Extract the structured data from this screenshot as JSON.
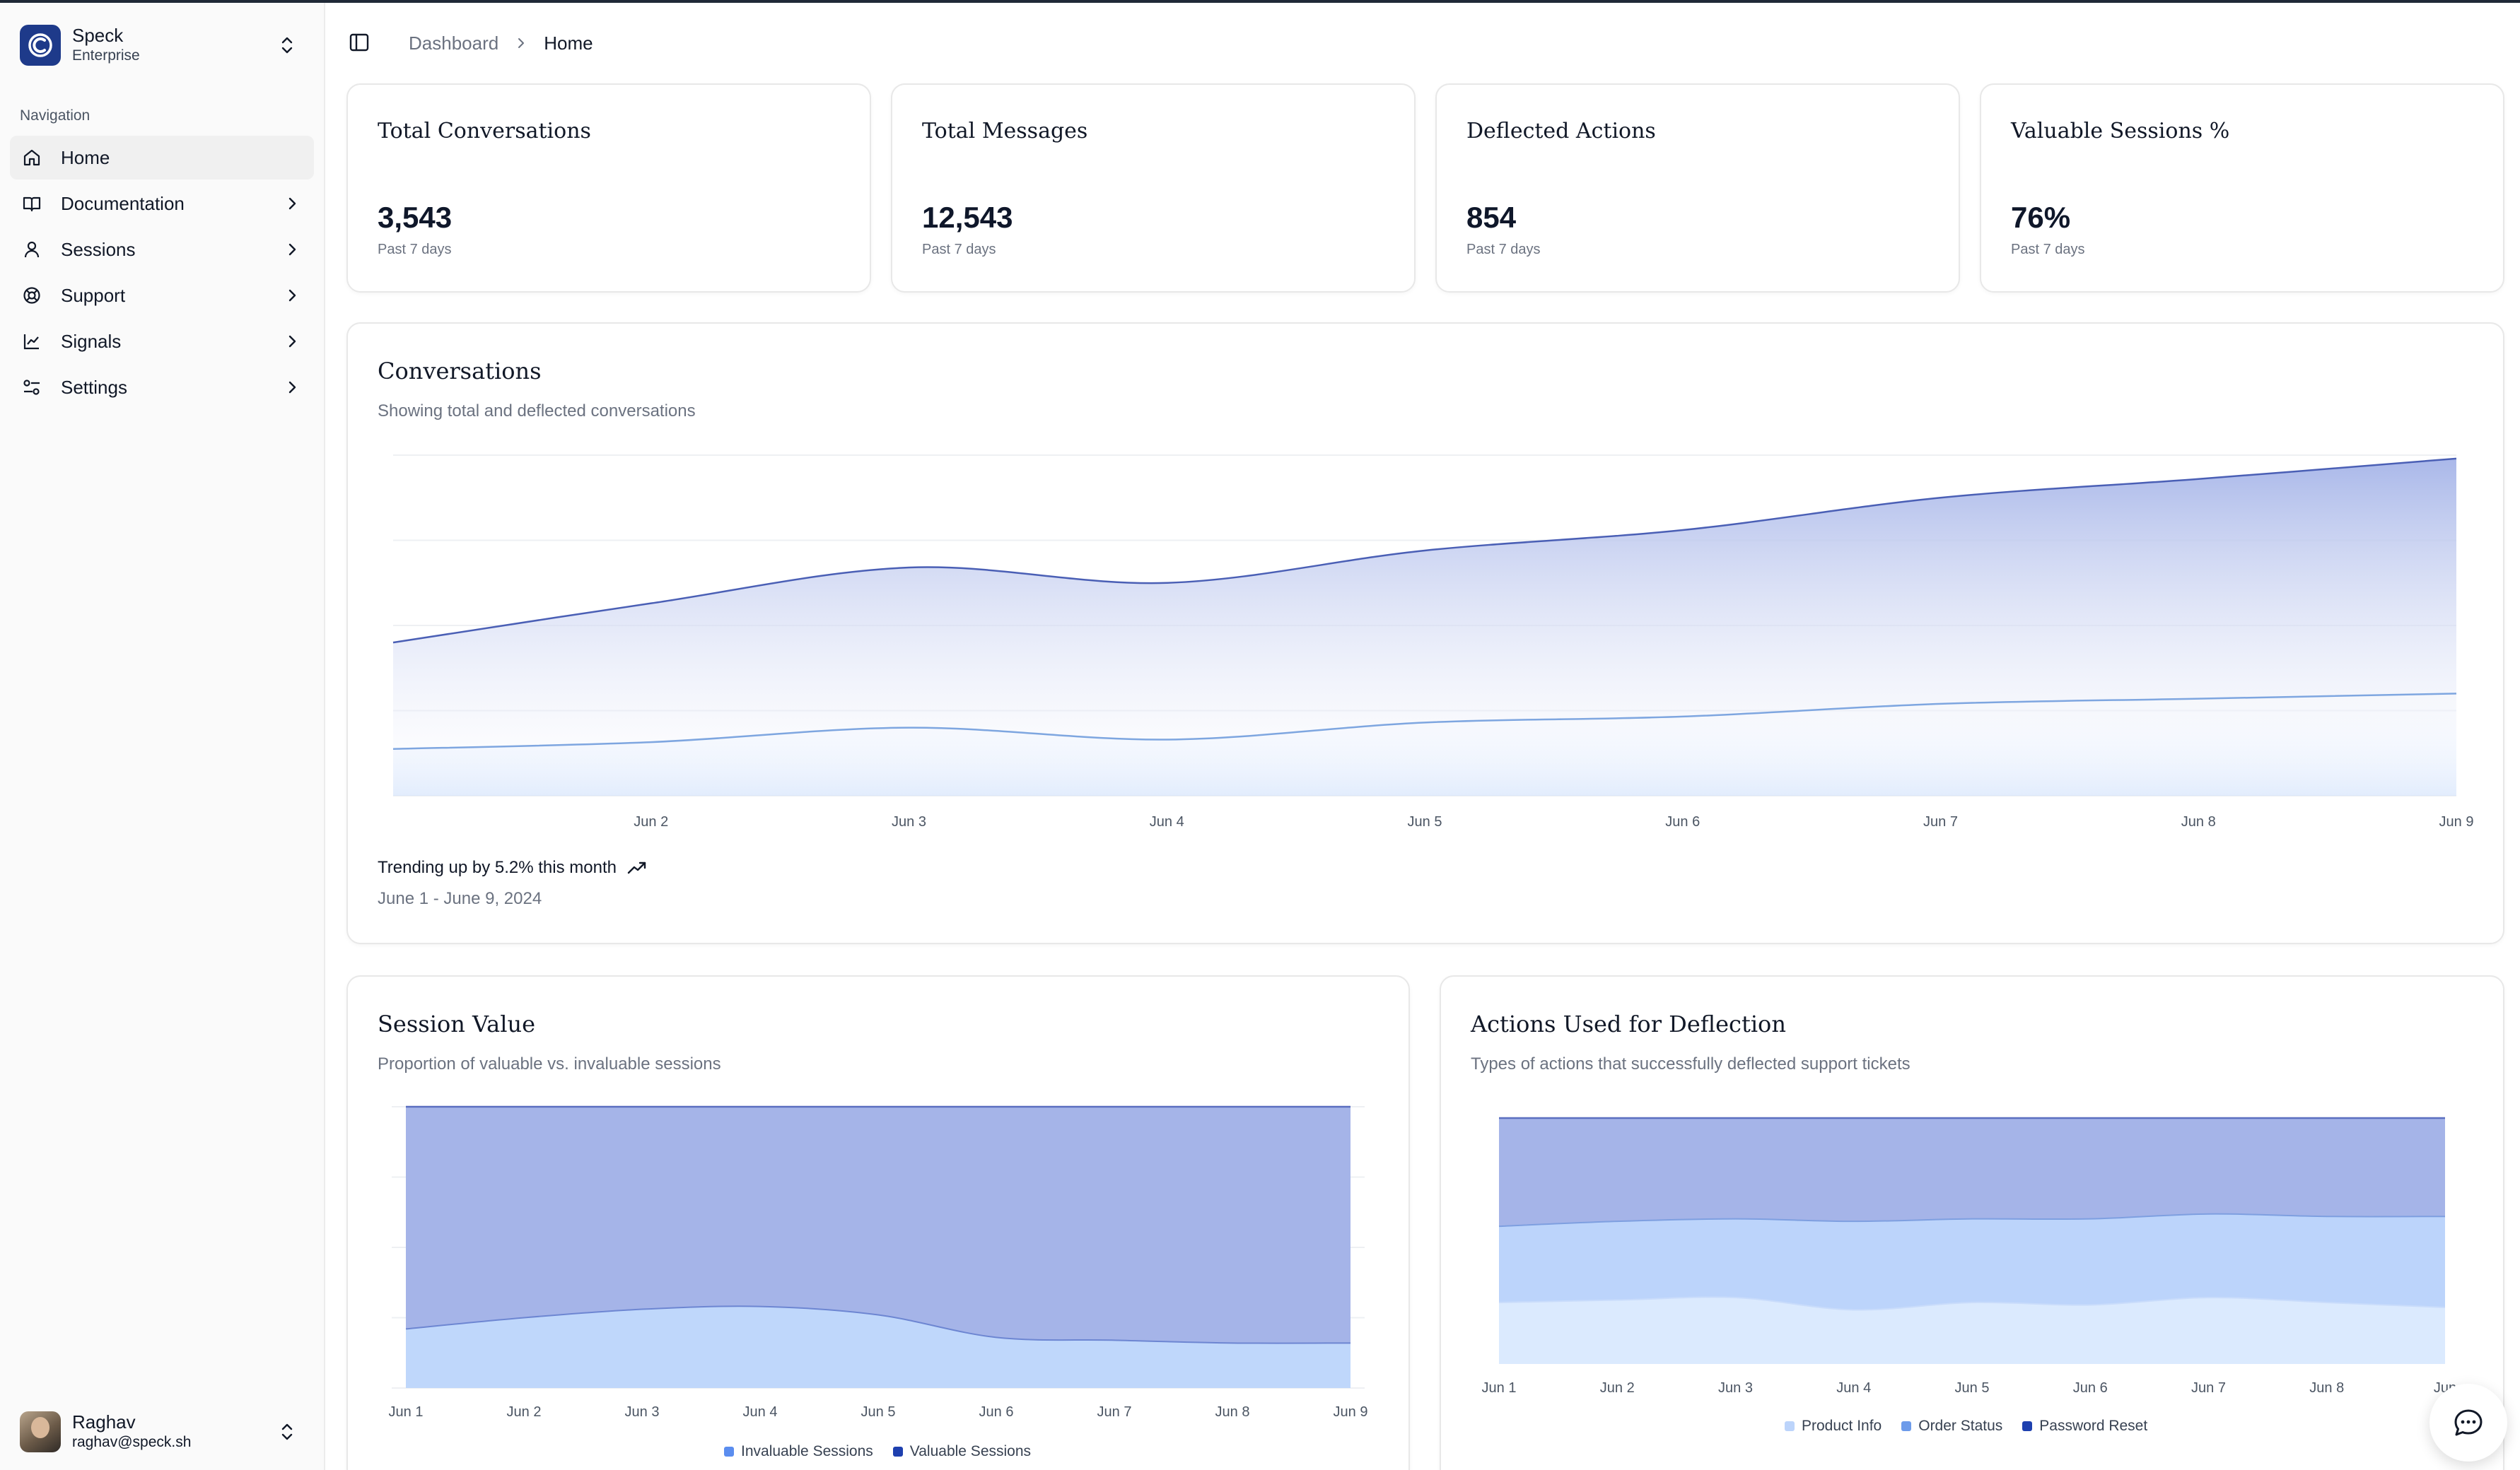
{
  "app": {
    "name": "Speck",
    "plan": "Enterprise"
  },
  "sidebar": {
    "section_label": "Navigation",
    "items": [
      {
        "label": "Home",
        "icon": "home-icon",
        "active": true
      },
      {
        "label": "Documentation",
        "icon": "book-icon"
      },
      {
        "label": "Sessions",
        "icon": "user-icon"
      },
      {
        "label": "Support",
        "icon": "lifebuoy-icon"
      },
      {
        "label": "Signals",
        "icon": "line-chart-icon"
      },
      {
        "label": "Settings",
        "icon": "sliders-icon"
      }
    ]
  },
  "user": {
    "name": "Raghav",
    "email": "raghav@speck.sh"
  },
  "breadcrumb": {
    "parent": "Dashboard",
    "current": "Home"
  },
  "stats": [
    {
      "title": "Total Conversations",
      "value": "3,543",
      "sub": "Past 7 days"
    },
    {
      "title": "Total Messages",
      "value": "12,543",
      "sub": "Past 7 days"
    },
    {
      "title": "Deflected Actions",
      "value": "854",
      "sub": "Past 7 days"
    },
    {
      "title": "Valuable Sessions %",
      "value": "76%",
      "sub": "Past 7 days"
    }
  ],
  "conversations": {
    "title": "Conversations",
    "description": "Showing total and deflected conversations",
    "trend": "Trending up by 5.2% this month",
    "range": "June 1 - June 9, 2024"
  },
  "session_value": {
    "title": "Session Value",
    "description": "Proportion of valuable vs. invaluable sessions"
  },
  "deflection": {
    "title": "Actions Used for Deflection",
    "description": "Types of actions that successfully deflected support tickets"
  },
  "colors": {
    "primary": "#1e3a8a",
    "line_dark": "#4a5fb5",
    "line_light": "#7ea6e0",
    "area_top": "#a5b4e8",
    "area_bottom": "#bfdbfe",
    "deflect_light": "#dbeafe",
    "deflect_mid": "#bcd4fb",
    "deflect_dark": "#a5b4e8"
  },
  "chart_data": [
    {
      "type": "area",
      "id": "conversations",
      "x": [
        "Jun 1",
        "Jun 2",
        "Jun 3",
        "Jun 4",
        "Jun 5",
        "Jun 6",
        "Jun 7",
        "Jun 8",
        "Jun 9"
      ],
      "x_labels": [
        "",
        "Jun 2",
        "Jun 3",
        "Jun 4",
        "Jun 5",
        "Jun 6",
        "Jun 7",
        "Jun 8",
        "Jun 9"
      ],
      "series": [
        {
          "values": [
            180,
            226,
            268,
            250,
            288,
            312,
            350,
            372,
            396
          ]
        },
        {
          "values": [
            55,
            63,
            80,
            66,
            86,
            93,
            108,
            114,
            120
          ]
        }
      ],
      "ylim": [
        0,
        400
      ],
      "grid": true
    },
    {
      "type": "area",
      "id": "session_value",
      "x": [
        "Jun 1",
        "Jun 2",
        "Jun 3",
        "Jun 4",
        "Jun 5",
        "Jun 6",
        "Jun 7",
        "Jun 8",
        "Jun 9"
      ],
      "series": [
        {
          "name": "Invaluable Sessions",
          "values": [
            21,
            25,
            28,
            29,
            26,
            18,
            17,
            16,
            16
          ]
        },
        {
          "name": "Valuable Sessions",
          "values": [
            79,
            75,
            72,
            71,
            74,
            82,
            83,
            84,
            84
          ]
        }
      ],
      "stacked": true,
      "ylim": [
        0,
        100
      ],
      "legend_position": "bottom"
    },
    {
      "type": "area",
      "id": "deflection",
      "x": [
        "Jun 1",
        "Jun 2",
        "Jun 3",
        "Jun 4",
        "Jun 5",
        "Jun 6",
        "Jun 7",
        "Jun 8",
        "Jun 9"
      ],
      "x_labels": [
        "Jun 1",
        "Jun 2",
        "Jun 3",
        "Jun 4",
        "Jun 5",
        "Jun 6",
        "Jun 7",
        "Jun 8",
        "Jun"
      ],
      "series": [
        {
          "name": "Product Info",
          "values": [
            25,
            26,
            27,
            22,
            25,
            24,
            27,
            25,
            23
          ]
        },
        {
          "name": "Order Status",
          "values": [
            31,
            32,
            32,
            36,
            34,
            35,
            34,
            35,
            37
          ]
        },
        {
          "name": "Password Reset",
          "values": [
            44,
            42,
            41,
            42,
            41,
            41,
            39,
            40,
            40
          ]
        }
      ],
      "stacked": true,
      "ylim": [
        0,
        100
      ],
      "legend_position": "bottom"
    }
  ]
}
